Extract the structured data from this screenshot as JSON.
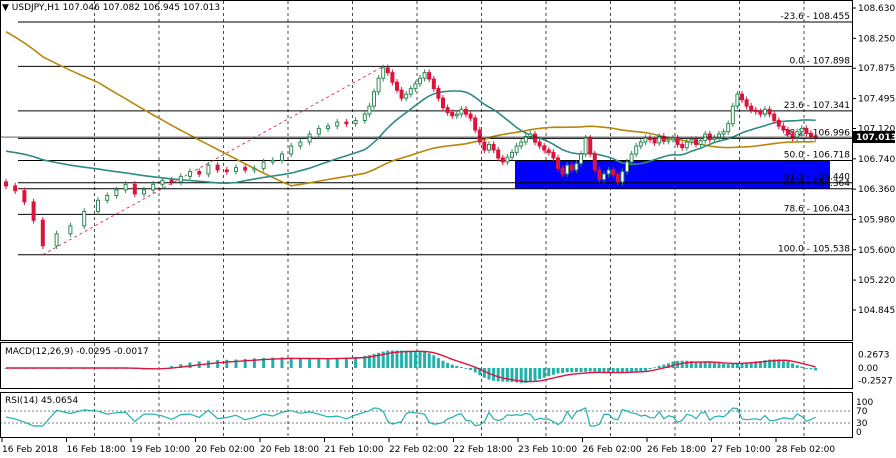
{
  "header": {
    "symbol_tf": "USDJPY,H1",
    "ohlc": "107.046 107.082 106.945 107.013"
  },
  "price_axis": {
    "ticks": [
      "108.630",
      "108.250",
      "107.875",
      "107.495",
      "107.120",
      "106.740",
      "106.360",
      "105.980",
      "105.600",
      "105.220",
      "104.845"
    ],
    "current_price": "107.013",
    "current_price_color": "#000000"
  },
  "fibo_levels": [
    {
      "label": "-23.6 - 108.455",
      "price": 108.455
    },
    {
      "label": "0.0 - 107.898",
      "price": 107.898
    },
    {
      "label": "23.6 - 107.341",
      "price": 107.341
    },
    {
      "label": "38.2 - 106.996",
      "price": 106.996
    },
    {
      "label": "50.0 - 106.718",
      "price": 106.718
    },
    {
      "label": "61.8 - 106.440",
      "price": 106.44
    },
    {
      "label": "65.0 - 106.364",
      "price": 106.364
    },
    {
      "label": "78.6 - 106.043",
      "price": 106.043
    },
    {
      "label": "100.0 - 105.538",
      "price": 105.538
    }
  ],
  "zone": {
    "color": "#0000ff",
    "price_top": 106.718,
    "price_bottom": 106.364
  },
  "macd": {
    "label": "MACD(12,26,9) -0.0295 -0.0017",
    "ticks": [
      "0.2673",
      "0.00",
      "-0.2527"
    ],
    "histogram_color": "#20b2aa",
    "signal_color": "#dc143c"
  },
  "rsi": {
    "label": "RSI(14) 45.0654",
    "ticks": [
      "100",
      "70",
      "30",
      "0"
    ],
    "line_color": "#20b2aa"
  },
  "time_axis": {
    "labels": [
      "16 Feb 2018",
      "16 Feb 18:00",
      "19 Feb 10:00",
      "20 Feb 02:00",
      "20 Feb 18:00",
      "21 Feb 10:00",
      "22 Feb 02:00",
      "22 Feb 18:00",
      "23 Feb 10:00",
      "26 Feb 02:00",
      "26 Feb 18:00",
      "27 Feb 10:00",
      "28 Feb 02:00"
    ]
  },
  "ma_colors": {
    "fast": "#2e8b83",
    "slow": "#b8860b"
  },
  "candle_colors": {
    "up": "#2e8b57",
    "down": "#dc143c"
  },
  "price_path": [
    [
      0,
      106.4
    ],
    [
      2,
      106.34
    ],
    [
      4,
      106.2
    ],
    [
      6,
      105.97
    ],
    [
      8,
      105.65
    ],
    [
      11,
      105.8
    ],
    [
      14,
      105.9
    ],
    [
      17,
      106.08
    ],
    [
      20,
      106.22
    ],
    [
      22,
      106.28
    ],
    [
      24,
      106.35
    ],
    [
      26,
      106.42
    ],
    [
      28,
      106.3
    ],
    [
      30,
      106.35
    ],
    [
      32,
      106.42
    ],
    [
      34,
      106.47
    ],
    [
      36,
      106.45
    ],
    [
      38,
      106.52
    ],
    [
      40,
      106.58
    ],
    [
      42,
      106.55
    ],
    [
      44,
      106.66
    ],
    [
      46,
      106.6
    ],
    [
      48,
      106.58
    ],
    [
      50,
      106.63
    ],
    [
      52,
      106.6
    ],
    [
      54,
      106.62
    ],
    [
      56,
      106.7
    ],
    [
      58,
      106.72
    ],
    [
      60,
      106.8
    ],
    [
      62,
      106.9
    ],
    [
      64,
      106.95
    ],
    [
      66,
      107.05
    ],
    [
      68,
      107.12
    ],
    [
      70,
      107.15
    ],
    [
      72,
      107.2
    ],
    [
      74,
      107.18
    ],
    [
      76,
      107.22
    ],
    [
      78,
      107.3
    ],
    [
      79,
      107.4
    ],
    [
      80,
      107.58
    ],
    [
      81,
      107.75
    ],
    [
      82,
      107.88
    ],
    [
      83,
      107.82
    ],
    [
      84,
      107.7
    ],
    [
      85,
      107.6
    ],
    [
      86,
      107.5
    ],
    [
      87,
      107.55
    ],
    [
      88,
      107.62
    ],
    [
      89,
      107.68
    ],
    [
      90,
      107.75
    ],
    [
      91,
      107.82
    ],
    [
      92,
      107.74
    ],
    [
      93,
      107.62
    ],
    [
      94,
      107.5
    ],
    [
      95,
      107.38
    ],
    [
      96,
      107.32
    ],
    [
      97,
      107.28
    ],
    [
      98,
      107.3
    ],
    [
      99,
      107.36
    ],
    [
      100,
      107.3
    ],
    [
      101,
      107.25
    ],
    [
      102,
      107.1
    ],
    [
      103,
      106.95
    ],
    [
      104,
      106.85
    ],
    [
      105,
      106.92
    ],
    [
      106,
      106.85
    ],
    [
      107,
      106.75
    ],
    [
      108,
      106.7
    ],
    [
      109,
      106.76
    ],
    [
      110,
      106.82
    ],
    [
      111,
      106.9
    ],
    [
      112,
      106.95
    ],
    [
      113,
      107.02
    ],
    [
      114,
      107.05
    ],
    [
      115,
      106.95
    ],
    [
      116,
      106.9
    ],
    [
      117,
      106.85
    ],
    [
      118,
      106.82
    ],
    [
      119,
      106.75
    ],
    [
      120,
      106.62
    ],
    [
      121,
      106.55
    ],
    [
      122,
      106.66
    ],
    [
      123,
      106.6
    ],
    [
      124,
      106.68
    ],
    [
      125,
      106.8
    ],
    [
      126,
      107.0
    ],
    [
      127,
      106.8
    ],
    [
      128,
      106.6
    ],
    [
      129,
      106.48
    ],
    [
      130,
      106.55
    ],
    [
      131,
      106.6
    ],
    [
      132,
      106.54
    ],
    [
      133,
      106.45
    ],
    [
      134,
      106.58
    ],
    [
      135,
      106.7
    ],
    [
      136,
      106.8
    ],
    [
      137,
      106.9
    ],
    [
      138,
      106.95
    ],
    [
      139,
      107.0
    ],
    [
      140,
      106.98
    ],
    [
      141,
      106.94
    ],
    [
      142,
      107.02
    ],
    [
      143,
      106.96
    ],
    [
      144,
      106.98
    ],
    [
      145,
      107.0
    ],
    [
      146,
      106.92
    ],
    [
      147,
      106.88
    ],
    [
      148,
      106.95
    ],
    [
      149,
      106.98
    ],
    [
      150,
      106.92
    ],
    [
      151,
      106.97
    ],
    [
      152,
      107.05
    ],
    [
      153,
      106.98
    ],
    [
      154,
      107.0
    ],
    [
      155,
      107.05
    ],
    [
      156,
      107.08
    ],
    [
      157,
      107.18
    ],
    [
      158,
      107.4
    ],
    [
      159,
      107.55
    ],
    [
      160,
      107.48
    ],
    [
      161,
      107.4
    ],
    [
      162,
      107.35
    ],
    [
      163,
      107.33
    ],
    [
      164,
      107.3
    ],
    [
      165,
      107.36
    ],
    [
      166,
      107.3
    ],
    [
      167,
      107.22
    ],
    [
      168,
      107.15
    ],
    [
      169,
      107.1
    ],
    [
      170,
      107.05
    ],
    [
      171,
      107.0
    ],
    [
      172,
      107.08
    ],
    [
      173,
      107.12
    ],
    [
      174,
      107.06
    ],
    [
      175,
      107.02
    ],
    [
      176,
      107.01
    ]
  ]
}
